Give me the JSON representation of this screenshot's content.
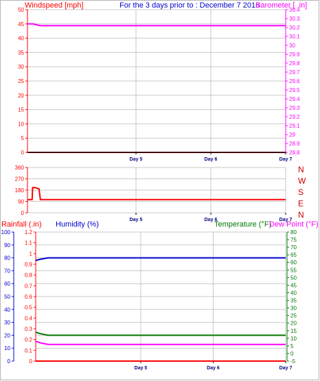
{
  "colors": {
    "wind": "#ff0000",
    "baro": "#ff00ff",
    "title": "#0000cc",
    "rain": "#ff0000",
    "humidity": "#0000cc",
    "temp": "#007700",
    "dew": "#ff00ff",
    "rain_line": "#ff0000",
    "grid": "#c8c8c8"
  },
  "header": {
    "wind_label": "Windspeed [mph]",
    "title": "For the 3 days prior to : December 7 2016",
    "baro_label": "Barometer [ .in]"
  },
  "row3_header": {
    "rain_label": "Rainfall (.in)",
    "humidity_label": "Humidity (%)",
    "temp_label": "Temperature (°F)",
    "dew_label": "Dew Point (°F)"
  },
  "chart_data": [
    {
      "type": "line",
      "title": "For the 3 days prior to : December 7 2016",
      "x_ticks": [
        "Day 5",
        "Day 6",
        "Day 7"
      ],
      "x": [
        0,
        0.02,
        0.05,
        0.1,
        0.5,
        1
      ],
      "y_left": {
        "label": "Windspeed [mph]",
        "ticks": [
          "0",
          "5",
          "10",
          "15",
          "20",
          "25",
          "30",
          "35",
          "40",
          "45",
          "50"
        ],
        "ylim": [
          0,
          50
        ]
      },
      "y_right": {
        "label": "Barometer [ .in]",
        "ticks": [
          "28.8",
          "28.9",
          "29",
          "29.1",
          "29.2",
          "29.3",
          "29.4",
          "29.5",
          "29.6",
          "29.7",
          "29.8",
          "29.9",
          "30",
          "30.1",
          "30.2",
          "30.3",
          "30.4"
        ],
        "ylim": [
          28.8,
          30.4
        ]
      },
      "series": [
        {
          "name": "Barometer [ .in]",
          "axis": "right",
          "values": [
            30.24,
            30.24,
            30.22,
            30.22,
            30.22,
            30.22
          ]
        },
        {
          "name": "Windspeed [mph]",
          "axis": "left",
          "values": [
            0,
            0,
            0,
            0,
            0,
            0
          ]
        }
      ],
      "grid": true
    },
    {
      "type": "line",
      "x_ticks": [
        "Day 5",
        "Day 6",
        "Day 7"
      ],
      "y_left": {
        "ticks": [
          "0",
          "90",
          "180",
          "270",
          "360"
        ],
        "ylim": [
          0,
          360
        ]
      },
      "y_right_labels": [
        "N",
        "W",
        "S",
        "E",
        "N"
      ],
      "series": [
        {
          "name": "Wind direction",
          "x": [
            0,
            0.018,
            0.02,
            0.03,
            0.045,
            0.05,
            1
          ],
          "values": [
            105,
            105,
            200,
            200,
            190,
            105,
            105
          ]
        }
      ],
      "grid": true
    },
    {
      "type": "line",
      "x_ticks": [
        "Day 5",
        "Day 6",
        "Day 7"
      ],
      "x": [
        0,
        0.02,
        0.05,
        0.1,
        0.5,
        1
      ],
      "axes": [
        {
          "label": "Rainfall (.in)",
          "ticks": [
            "0",
            "0.1",
            "0.2",
            "0.3",
            "0.4",
            "0.5",
            "0.6",
            "0.7",
            "0.8",
            "0.9",
            "1",
            "1.1",
            "1.2"
          ],
          "ylim": [
            0,
            1.2
          ]
        },
        {
          "label": "Humidity (%)",
          "ticks": [
            "0",
            "10",
            "20",
            "30",
            "40",
            "50",
            "60",
            "70",
            "80",
            "90",
            "100"
          ],
          "ylim": [
            0,
            100
          ]
        },
        {
          "label": "Temperature (°F)",
          "ticks": [
            "-5",
            "0",
            "5",
            "10",
            "15",
            "20",
            "25",
            "30",
            "35",
            "40",
            "45",
            "50",
            "55",
            "60",
            "65",
            "70",
            "75",
            "80"
          ],
          "ylim": [
            -5,
            80
          ]
        },
        {
          "label": "Dew Point (°F)",
          "ticks": [
            "-5",
            "0",
            "5",
            "10",
            "15",
            "20",
            "25",
            "30",
            "35",
            "40",
            "45",
            "50",
            "55",
            "60",
            "65",
            "70",
            "75",
            "80"
          ],
          "ylim": [
            -5,
            80
          ]
        }
      ],
      "series": [
        {
          "name": "Humidity (%)",
          "axis": 1,
          "values": [
            78,
            79,
            80,
            80,
            80,
            80
          ]
        },
        {
          "name": "Temperature (°F)",
          "axis": 2,
          "values": [
            14,
            13,
            12,
            12,
            12,
            12
          ]
        },
        {
          "name": "Dew Point (°F)",
          "axis": 3,
          "values": [
            8,
            7,
            6,
            6,
            6,
            6
          ]
        },
        {
          "name": "Rainfall (.in)",
          "axis": 0,
          "values": [
            0,
            0,
            0,
            0,
            0,
            0
          ]
        }
      ],
      "grid": true
    }
  ]
}
